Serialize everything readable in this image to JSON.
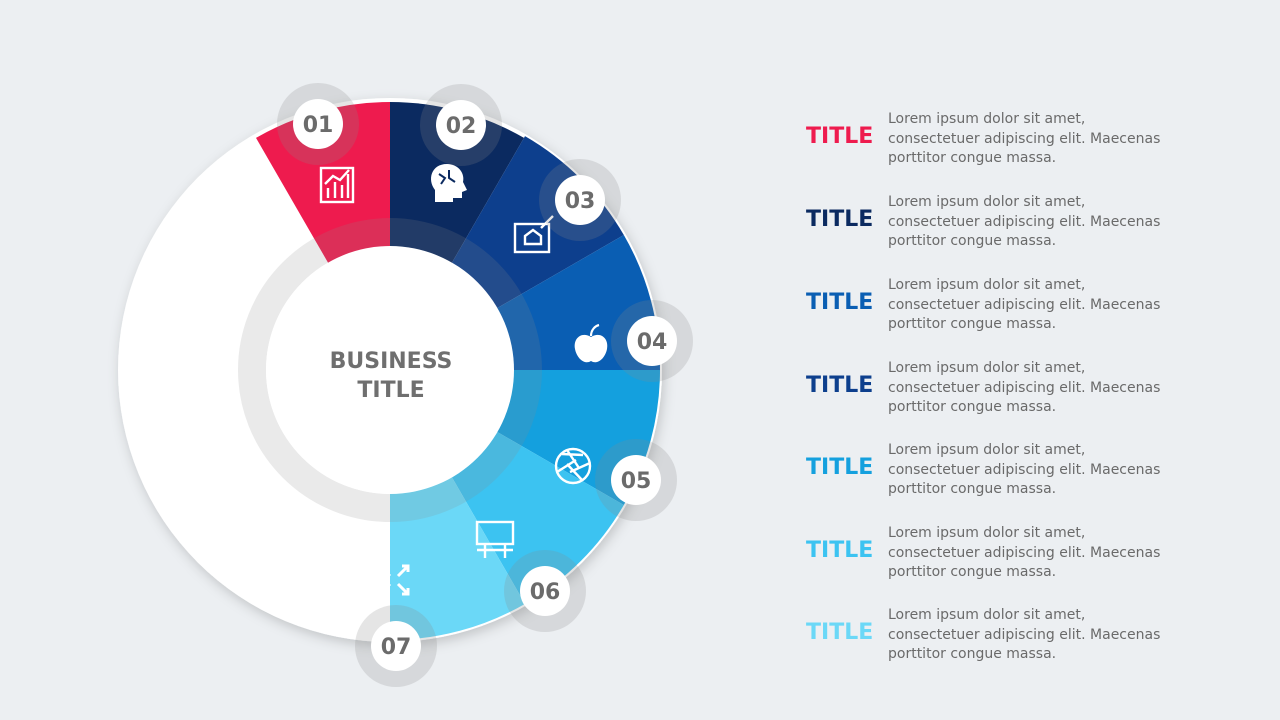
{
  "center": {
    "line1": "BUSINESS",
    "line2": "TITLE"
  },
  "segments": [
    {
      "num": "01",
      "color": "#ee1b4e",
      "icon": "bar-chart-icon"
    },
    {
      "num": "02",
      "color": "#0b2a60",
      "icon": "brain-head-icon"
    },
    {
      "num": "03",
      "color": "#0d3f8d",
      "icon": "blueprint-house-icon"
    },
    {
      "num": "04",
      "color": "#0a5eb3",
      "icon": "apple-icon"
    },
    {
      "num": "05",
      "color": "#14a0de",
      "icon": "camera-aperture-icon"
    },
    {
      "num": "06",
      "color": "#3cc3f1",
      "icon": "billboard-icon"
    },
    {
      "num": "07",
      "color": "#6bd8f7",
      "icon": "cross-arrows-icon"
    }
  ],
  "legend": [
    {
      "title": "TITLE",
      "color": "#ee1b4e",
      "text": "Lorem ipsum dolor sit amet, consectetuer adipiscing elit. Maecenas porttitor congue massa."
    },
    {
      "title": "TITLE",
      "color": "#0b2a60",
      "text": "Lorem ipsum dolor sit amet, consectetuer adipiscing elit. Maecenas porttitor congue massa."
    },
    {
      "title": "TITLE",
      "color": "#0a5eb3",
      "text": "Lorem ipsum dolor sit amet, consectetuer adipiscing elit. Maecenas porttitor congue massa."
    },
    {
      "title": "TITLE",
      "color": "#0d3f8d",
      "text": "Lorem ipsum dolor sit amet, consectetuer adipiscing elit. Maecenas porttitor congue massa."
    },
    {
      "title": "TITLE",
      "color": "#14a0de",
      "text": "Lorem ipsum dolor sit amet, consectetuer adipiscing elit. Maecenas porttitor congue massa."
    },
    {
      "title": "TITLE",
      "color": "#3cc3f1",
      "text": "Lorem ipsum dolor sit amet, consectetuer adipiscing elit. Maecenas porttitor congue massa."
    },
    {
      "title": "TITLE",
      "color": "#6bd8f7",
      "text": "Lorem ipsum dolor sit amet, consectetuer adipiscing elit. Maecenas porttitor congue massa."
    }
  ]
}
